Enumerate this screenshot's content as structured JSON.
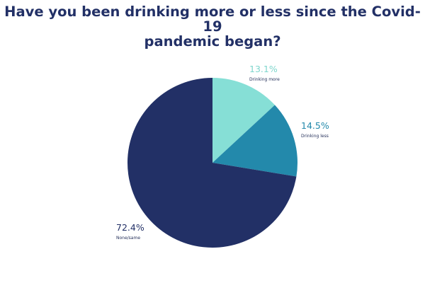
{
  "chart_data": {
    "type": "pie",
    "title": "Have you been drinking more or less since the Covid-19\npandemic began?",
    "slices": [
      {
        "label": "Drinking more",
        "value": 13.1,
        "value_label": "13.1%",
        "color": "#86dfd6",
        "label_color": "#7fd6cd"
      },
      {
        "label": "Drinking less",
        "value": 14.5,
        "value_label": "14.5%",
        "color": "#2389ab",
        "label_color": "#2389ab"
      },
      {
        "label": "None/same",
        "value": 72.4,
        "value_label": "72.4%",
        "color": "#223066",
        "label_color": "#223066"
      }
    ],
    "start": "12 o'clock",
    "direction": "clockwise"
  }
}
